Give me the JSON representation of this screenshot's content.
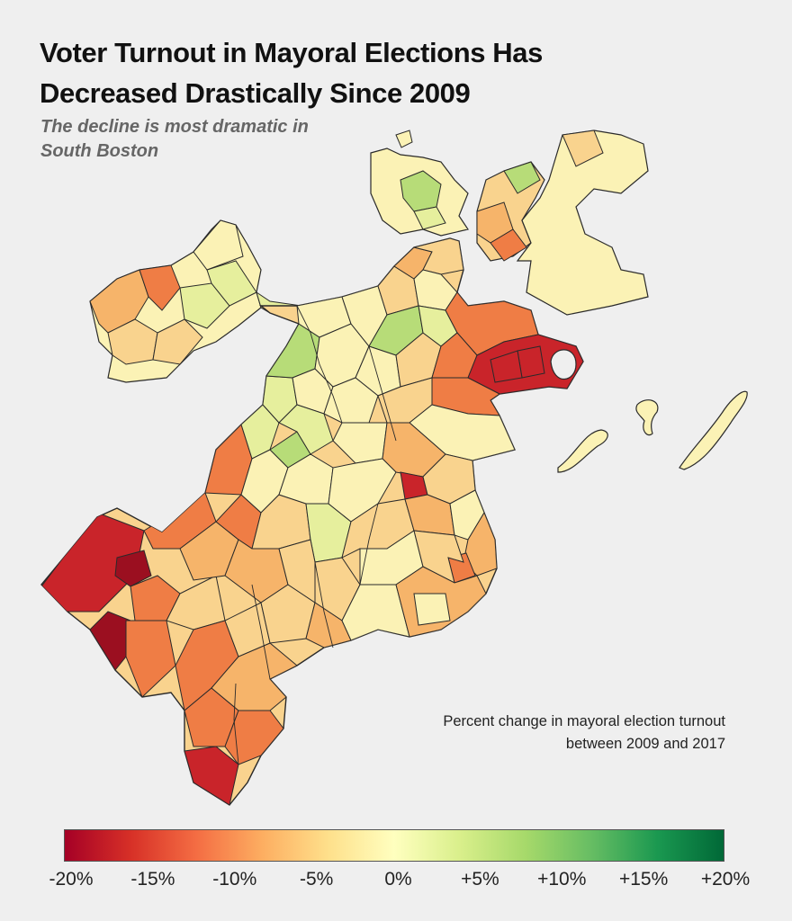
{
  "header": {
    "title_line1": "Voter Turnout in Mayoral Elections Has",
    "title_line2": "Decreased Drastically Since 2009",
    "subtitle_line1": "The decline is most dramatic in",
    "subtitle_line2": "South Boston"
  },
  "legend": {
    "title_line1": "Percent change in mayoral election turnout",
    "title_line2": "between 2009 and 2017",
    "ticks": [
      "-20%",
      "-15%",
      "-10%",
      "-5%",
      "0%",
      "+5%",
      "+10%",
      "+15%",
      "+20%"
    ],
    "scale_min": -20,
    "scale_max": 20,
    "colors": [
      "#a50026",
      "#d73027",
      "#f46d43",
      "#fdae61",
      "#fee08b",
      "#ffffbf",
      "#d9ef8b",
      "#a6d96a",
      "#66bd63",
      "#1a9850",
      "#006837"
    ]
  },
  "map_colors": {
    "background": "#efefef",
    "boundary": "#2a2a2a",
    "strong_decline": "#c9242a",
    "severe_decline": "#9b0f20",
    "moderate_decline": "#ef7d45",
    "mild_decline": "#f6b46a",
    "slight_decline": "#f9d38e",
    "no_change": "#fbf2b5",
    "slight_increase": "#e6ef9d",
    "increase": "#b7dc78"
  }
}
